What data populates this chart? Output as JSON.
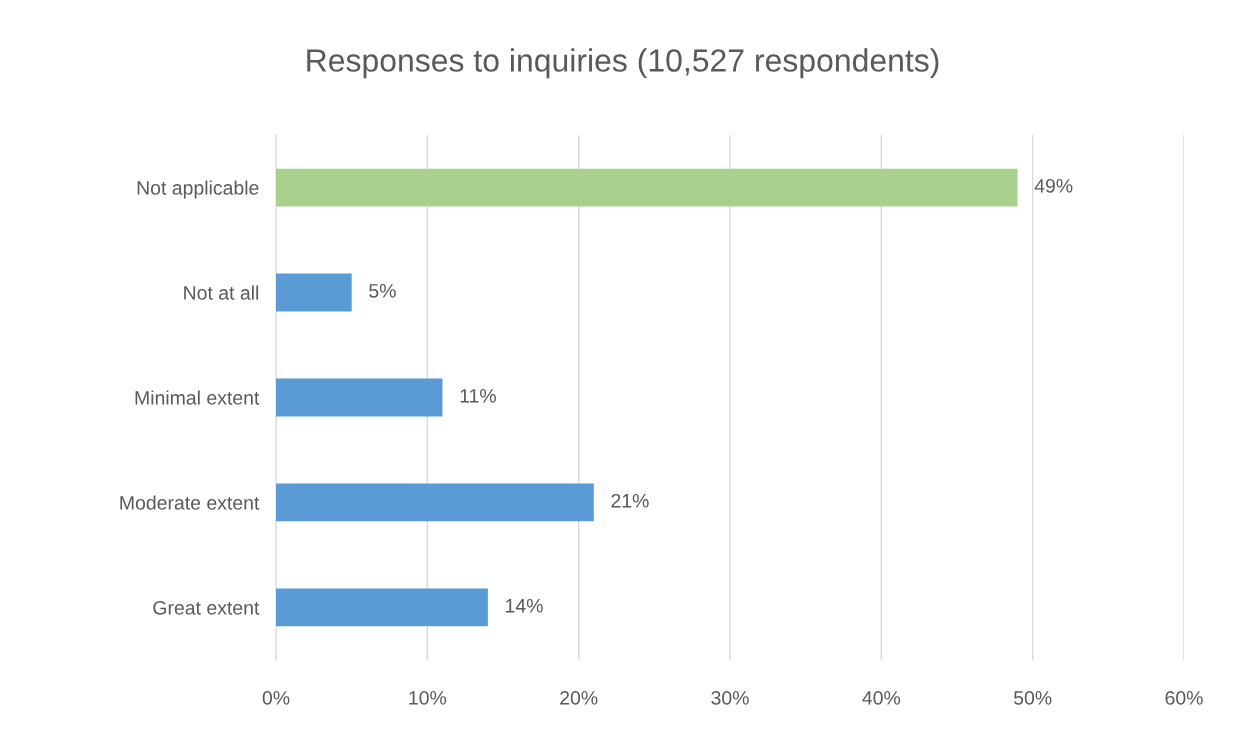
{
  "chart_data": {
    "type": "bar",
    "orientation": "horizontal",
    "title": "Responses to inquiries (10,527 respondents)",
    "categories": [
      "Not applicable",
      "Not at all",
      "Minimal extent",
      "Moderate extent",
      "Great extent"
    ],
    "values": [
      49,
      5,
      11,
      21,
      14
    ],
    "colors": [
      "#a9d18e",
      "#5b9bd5",
      "#5b9bd5",
      "#5b9bd5",
      "#5b9bd5"
    ],
    "value_labels": [
      "49%",
      "5%",
      "11%",
      "21%",
      "14%"
    ],
    "xlim": [
      0,
      60
    ],
    "xticks": [
      {
        "value": 0,
        "label": "0%"
      },
      {
        "value": 10,
        "label": "10%"
      },
      {
        "value": 20,
        "label": "20%"
      },
      {
        "value": 30,
        "label": "30%"
      },
      {
        "value": 40,
        "label": "40%"
      },
      {
        "value": 50,
        "label": "50%"
      },
      {
        "value": 60,
        "label": "60%"
      }
    ],
    "grid": "x",
    "legend": false
  }
}
